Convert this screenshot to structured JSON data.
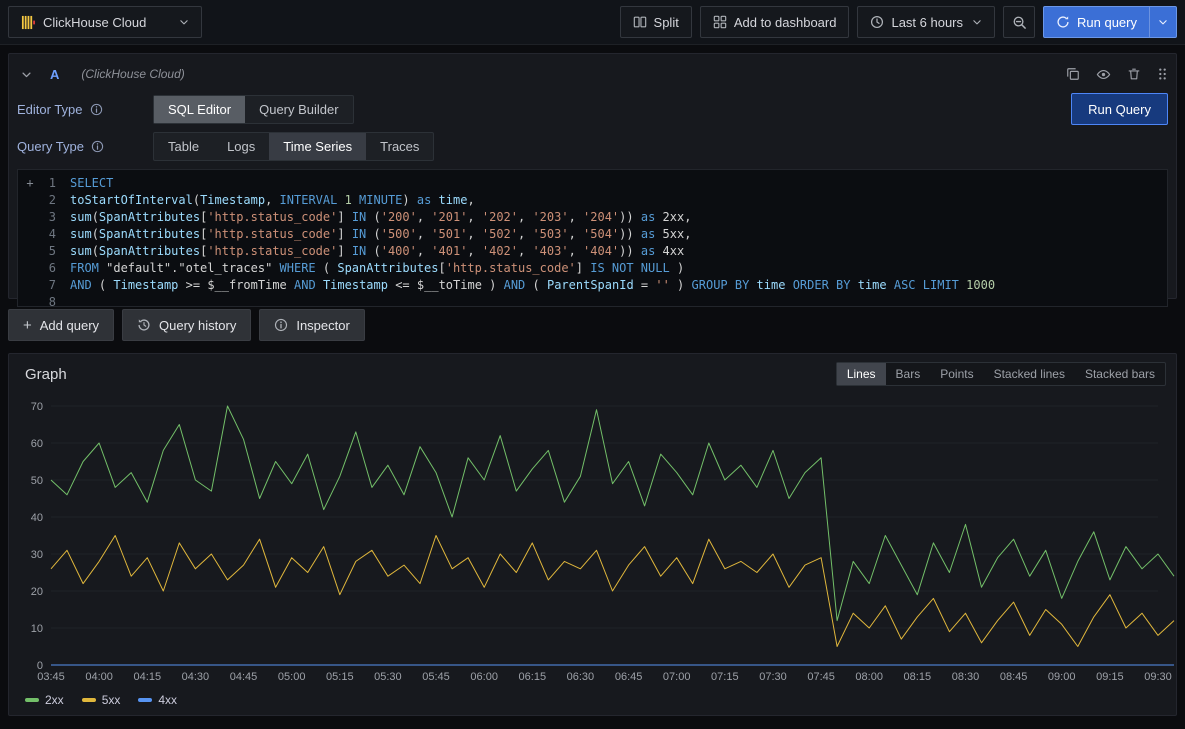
{
  "topbar": {
    "datasource_picker": {
      "label": "ClickHouse Cloud"
    },
    "split": {
      "label": "Split"
    },
    "add_to_dashboard": {
      "label": "Add to dashboard"
    },
    "time_range": {
      "label": "Last 6 hours"
    },
    "run_query": {
      "label": "Run query"
    }
  },
  "query_editor": {
    "ref_id": "A",
    "datasource_hint": "(ClickHouse Cloud)",
    "editor_type": {
      "label": "Editor Type",
      "options": [
        "SQL Editor",
        "Query Builder"
      ],
      "selected": "SQL Editor"
    },
    "run_query_label": "Run Query",
    "query_type": {
      "label": "Query Type",
      "options": [
        "Table",
        "Logs",
        "Time Series",
        "Traces"
      ],
      "selected": "Time Series"
    },
    "sql_lines": [
      [
        [
          "kw",
          "SELECT"
        ]
      ],
      [
        [
          "id",
          "toStartOfInterval"
        ],
        [
          "d",
          "("
        ],
        [
          "id",
          "Timestamp"
        ],
        [
          "d",
          ", "
        ],
        [
          "kw",
          "INTERVAL"
        ],
        [
          "d",
          " "
        ],
        [
          "num",
          "1"
        ],
        [
          "d",
          " "
        ],
        [
          "kw",
          "MINUTE"
        ],
        [
          "d",
          ") "
        ],
        [
          "kw",
          "as"
        ],
        [
          "d",
          " "
        ],
        [
          "id",
          "time"
        ],
        [
          "d",
          ","
        ]
      ],
      [
        [
          "id",
          "sum"
        ],
        [
          "d",
          "("
        ],
        [
          "id",
          "SpanAttributes"
        ],
        [
          "d",
          "["
        ],
        [
          "str",
          "'http.status_code'"
        ],
        [
          "d",
          "] "
        ],
        [
          "kw",
          "IN"
        ],
        [
          "d",
          " ("
        ],
        [
          "str",
          "'200'"
        ],
        [
          "d",
          ", "
        ],
        [
          "str",
          "'201'"
        ],
        [
          "d",
          ", "
        ],
        [
          "str",
          "'202'"
        ],
        [
          "d",
          ", "
        ],
        [
          "str",
          "'203'"
        ],
        [
          "d",
          ", "
        ],
        [
          "str",
          "'204'"
        ],
        [
          "d",
          ")) "
        ],
        [
          "kw",
          "as"
        ],
        [
          "d",
          " 2xx,"
        ]
      ],
      [
        [
          "id",
          "sum"
        ],
        [
          "d",
          "("
        ],
        [
          "id",
          "SpanAttributes"
        ],
        [
          "d",
          "["
        ],
        [
          "str",
          "'http.status_code'"
        ],
        [
          "d",
          "] "
        ],
        [
          "kw",
          "IN"
        ],
        [
          "d",
          " ("
        ],
        [
          "str",
          "'500'"
        ],
        [
          "d",
          ", "
        ],
        [
          "str",
          "'501'"
        ],
        [
          "d",
          ", "
        ],
        [
          "str",
          "'502'"
        ],
        [
          "d",
          ", "
        ],
        [
          "str",
          "'503'"
        ],
        [
          "d",
          ", "
        ],
        [
          "str",
          "'504'"
        ],
        [
          "d",
          ")) "
        ],
        [
          "kw",
          "as"
        ],
        [
          "d",
          " 5xx,"
        ]
      ],
      [
        [
          "id",
          "sum"
        ],
        [
          "d",
          "("
        ],
        [
          "id",
          "SpanAttributes"
        ],
        [
          "d",
          "["
        ],
        [
          "str",
          "'http.status_code'"
        ],
        [
          "d",
          "] "
        ],
        [
          "kw",
          "IN"
        ],
        [
          "d",
          " ("
        ],
        [
          "str",
          "'400'"
        ],
        [
          "d",
          ", "
        ],
        [
          "str",
          "'401'"
        ],
        [
          "d",
          ", "
        ],
        [
          "str",
          "'402'"
        ],
        [
          "d",
          ", "
        ],
        [
          "str",
          "'403'"
        ],
        [
          "d",
          ", "
        ],
        [
          "str",
          "'404'"
        ],
        [
          "d",
          ")) "
        ],
        [
          "kw",
          "as"
        ],
        [
          "d",
          " 4xx"
        ]
      ],
      [
        [
          "kw",
          "FROM"
        ],
        [
          "d",
          " \"default\".\"otel_traces\" "
        ],
        [
          "kw",
          "WHERE"
        ],
        [
          "d",
          " ( "
        ],
        [
          "id",
          "SpanAttributes"
        ],
        [
          "d",
          "["
        ],
        [
          "str",
          "'http.status_code'"
        ],
        [
          "d",
          "] "
        ],
        [
          "kw",
          "IS NOT NULL"
        ],
        [
          "d",
          " )"
        ]
      ],
      [
        [
          "kw",
          "AND"
        ],
        [
          "d",
          " ( "
        ],
        [
          "id",
          "Timestamp"
        ],
        [
          "d",
          " >= "
        ],
        [
          "var",
          "$__fromTime"
        ],
        [
          "d",
          " "
        ],
        [
          "kw",
          "AND"
        ],
        [
          "d",
          " "
        ],
        [
          "id",
          "Timestamp"
        ],
        [
          "d",
          " <= "
        ],
        [
          "var",
          "$__toTime"
        ],
        [
          "d",
          " ) "
        ],
        [
          "kw",
          "AND"
        ],
        [
          "d",
          " ( "
        ],
        [
          "id",
          "ParentSpanId"
        ],
        [
          "d",
          " = "
        ],
        [
          "str",
          "''"
        ],
        [
          "d",
          " ) "
        ],
        [
          "kw",
          "GROUP BY"
        ],
        [
          "d",
          " "
        ],
        [
          "id",
          "time"
        ],
        [
          "d",
          " "
        ],
        [
          "kw",
          "ORDER BY"
        ],
        [
          "d",
          " "
        ],
        [
          "id",
          "time"
        ],
        [
          "d",
          " "
        ],
        [
          "kw",
          "ASC"
        ],
        [
          "d",
          " "
        ],
        [
          "kw",
          "LIMIT"
        ],
        [
          "d",
          " "
        ],
        [
          "num",
          "1000"
        ]
      ],
      []
    ],
    "footer": {
      "add_query": "Add query",
      "query_history": "Query history",
      "inspector": "Inspector"
    }
  },
  "graph": {
    "title": "Graph",
    "modes": [
      "Lines",
      "Bars",
      "Points",
      "Stacked lines",
      "Stacked bars"
    ],
    "selected_mode": "Lines"
  },
  "chart_data": {
    "type": "line",
    "title": "Graph",
    "x_step_minutes": 5,
    "x_tick_labels": [
      "03:45",
      "04:00",
      "04:15",
      "04:30",
      "04:45",
      "05:00",
      "05:15",
      "05:30",
      "05:45",
      "06:00",
      "06:15",
      "06:30",
      "06:45",
      "07:00",
      "07:15",
      "07:30",
      "07:45",
      "08:00",
      "08:15",
      "08:30",
      "08:45",
      "09:00",
      "09:15",
      "09:30"
    ],
    "ylim": [
      0,
      70
    ],
    "y_ticks": [
      0,
      10,
      20,
      30,
      40,
      50,
      60,
      70
    ],
    "grid": "horizontal",
    "legend_position": "bottom-left",
    "series": [
      {
        "name": "2xx",
        "color": "#73bf69",
        "values": [
          50,
          46,
          55,
          60,
          48,
          52,
          44,
          58,
          65,
          50,
          47,
          70,
          61,
          45,
          55,
          49,
          57,
          42,
          51,
          63,
          48,
          54,
          46,
          59,
          52,
          40,
          56,
          50,
          62,
          47,
          53,
          58,
          44,
          51,
          69,
          49,
          55,
          43,
          57,
          52,
          46,
          60,
          50,
          54,
          48,
          58,
          45,
          52,
          56,
          12,
          28,
          22,
          35,
          27,
          19,
          33,
          25,
          38,
          21,
          29,
          34,
          24,
          31,
          18,
          28,
          36,
          23,
          32,
          26,
          30,
          24
        ]
      },
      {
        "name": "5xx",
        "color": "#e0b73c",
        "values": [
          26,
          31,
          22,
          28,
          35,
          24,
          29,
          20,
          33,
          26,
          30,
          23,
          27,
          34,
          21,
          29,
          25,
          32,
          19,
          28,
          31,
          24,
          27,
          22,
          35,
          26,
          29,
          21,
          30,
          25,
          33,
          23,
          28,
          26,
          31,
          20,
          27,
          32,
          24,
          29,
          22,
          34,
          26,
          28,
          25,
          30,
          21,
          27,
          29,
          5,
          14,
          10,
          16,
          7,
          13,
          18,
          9,
          14,
          6,
          12,
          17,
          8,
          15,
          11,
          5,
          13,
          19,
          10,
          14,
          8,
          12
        ]
      },
      {
        "name": "4xx",
        "color": "#5794f2",
        "values": [
          0,
          0,
          0,
          0,
          0,
          0,
          0,
          0,
          0,
          0,
          0,
          0,
          0,
          0,
          0,
          0,
          0,
          0,
          0,
          0,
          0,
          0,
          0,
          0,
          0,
          0,
          0,
          0,
          0,
          0,
          0,
          0,
          0,
          0,
          0,
          0,
          0,
          0,
          0,
          0,
          0,
          0,
          0,
          0,
          0,
          0,
          0,
          0,
          0,
          0,
          0,
          0,
          0,
          0,
          0,
          0,
          0,
          0,
          0,
          0,
          0,
          0,
          0,
          0,
          0,
          0,
          0,
          0,
          0,
          0,
          0
        ]
      }
    ]
  }
}
